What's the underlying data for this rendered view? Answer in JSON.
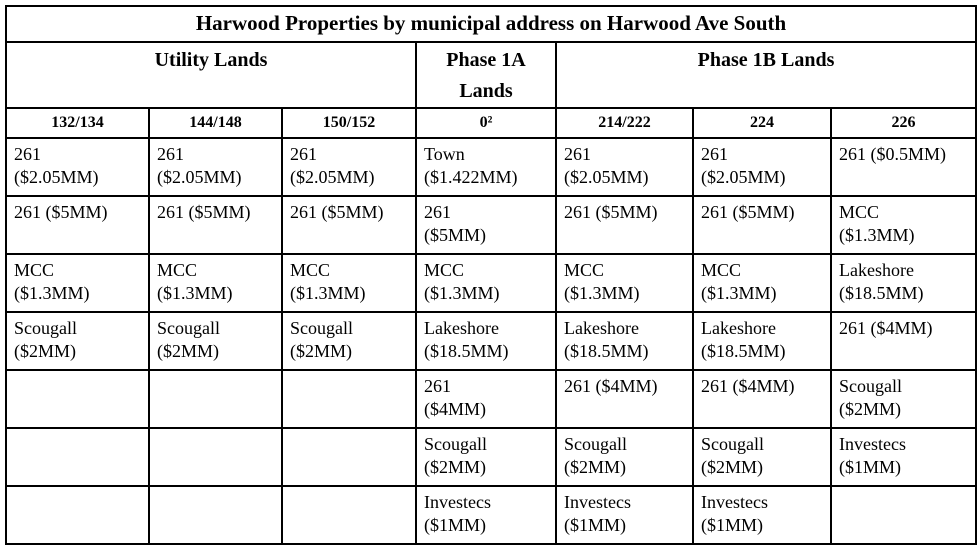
{
  "table": {
    "title": "Harwood Properties by municipal address on Harwood Ave South",
    "groups": [
      {
        "label": "Utility Lands",
        "colspan": 3
      },
      {
        "label": "Phase 1A Lands",
        "colspan": 1
      },
      {
        "label": "Phase 1B Lands",
        "colspan": 3
      }
    ],
    "columns": [
      "132/134",
      "144/148",
      "150/152",
      "0²",
      "214/222",
      "224",
      "226"
    ],
    "rows": [
      [
        "261\n($2.05MM)",
        "261\n($2.05MM)",
        "261\n($2.05MM)",
        "Town\n($1.422MM)",
        "261\n($2.05MM)",
        "261\n($2.05MM)",
        "261 ($0.5MM)"
      ],
      [
        "261 ($5MM)",
        "261 ($5MM)",
        "261 ($5MM)",
        "261\n($5MM)",
        "261 ($5MM)",
        "261 ($5MM)",
        "MCC\n($1.3MM)"
      ],
      [
        "MCC\n($1.3MM)",
        "MCC\n($1.3MM)",
        "MCC\n($1.3MM)",
        "MCC\n($1.3MM)",
        "MCC\n($1.3MM)",
        "MCC\n($1.3MM)",
        "Lakeshore\n($18.5MM)"
      ],
      [
        "Scougall\n($2MM)",
        "Scougall\n($2MM)",
        "Scougall\n($2MM)",
        "Lakeshore\n($18.5MM)",
        "Lakeshore\n($18.5MM)",
        "Lakeshore\n($18.5MM)",
        "261 ($4MM)"
      ],
      [
        "",
        "",
        "",
        "261\n($4MM)",
        "261 ($4MM)",
        "261 ($4MM)",
        "Scougall\n($2MM)"
      ],
      [
        "",
        "",
        "",
        "Scougall\n($2MM)",
        "Scougall\n($2MM)",
        "Scougall\n($2MM)",
        "Investecs\n($1MM)"
      ],
      [
        "",
        "",
        "",
        "Investecs\n($1MM)",
        "Investecs\n($1MM)",
        "Investecs\n($1MM)",
        ""
      ]
    ],
    "colors": {
      "border": "#000000",
      "text": "#000000",
      "background": "#ffffff"
    }
  }
}
